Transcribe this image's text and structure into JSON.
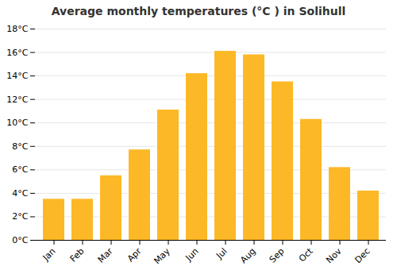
{
  "chart_data": {
    "type": "bar",
    "title": "Average monthly temperatures (°C ) in Solihull",
    "categories": [
      "Jan",
      "Feb",
      "Mar",
      "Apr",
      "May",
      "Jun",
      "Jul",
      "Aug",
      "Sep",
      "Oct",
      "Nov",
      "Dec"
    ],
    "values": [
      3.5,
      3.5,
      5.5,
      7.7,
      11.1,
      14.2,
      16.1,
      15.8,
      13.5,
      10.3,
      6.2,
      4.2
    ],
    "color": "#FDB827",
    "ylim": [
      0,
      18
    ],
    "yticks": [
      {
        "value": 0,
        "label": "0°C"
      },
      {
        "value": 2,
        "label": "2°C"
      },
      {
        "value": 4,
        "label": "4°C"
      },
      {
        "value": 6,
        "label": "6°C"
      },
      {
        "value": 8,
        "label": "8°C"
      },
      {
        "value": 10,
        "label": "10°C"
      },
      {
        "value": 12,
        "label": "12°C"
      },
      {
        "value": 14,
        "label": "14°C"
      },
      {
        "value": 16,
        "label": "16°C"
      },
      {
        "value": 18,
        "label": "18°C"
      }
    ],
    "grid": true
  }
}
